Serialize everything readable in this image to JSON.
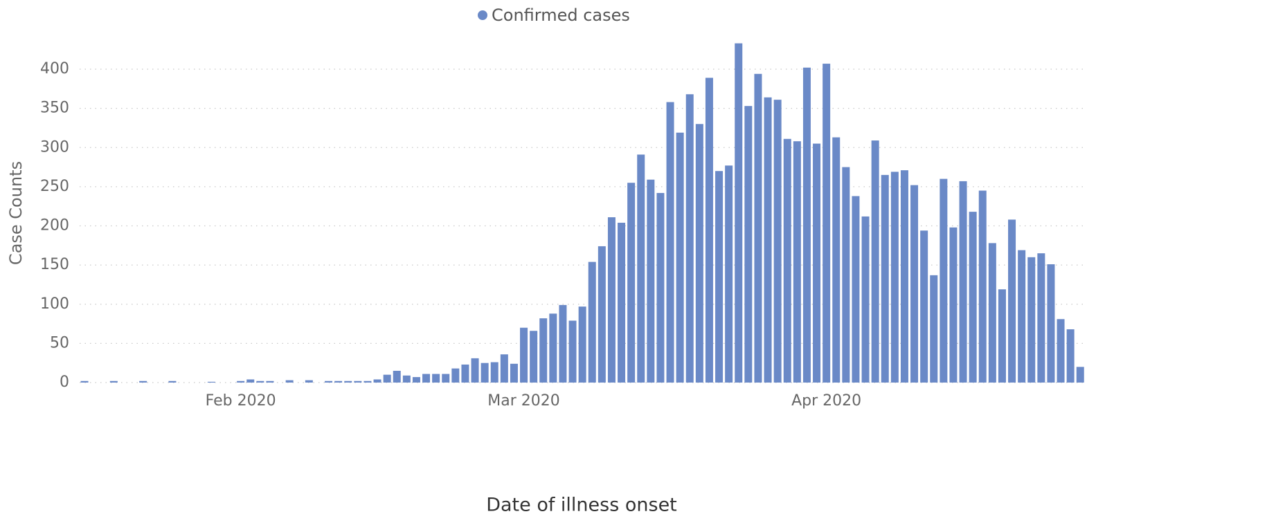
{
  "chart_data": {
    "type": "bar",
    "x_label": "Date of illness onset",
    "y_label": "Case Counts",
    "categories": [
      null,
      null,
      null,
      null,
      null,
      null,
      null,
      null,
      null,
      null,
      null,
      null,
      null,
      null,
      null,
      null,
      "Feb 2020",
      null,
      null,
      null,
      null,
      null,
      null,
      null,
      null,
      null,
      null,
      null,
      null,
      null,
      null,
      null,
      null,
      null,
      null,
      null,
      null,
      null,
      null,
      null,
      null,
      null,
      null,
      null,
      null,
      "Mar 2020",
      null,
      null,
      null,
      null,
      null,
      null,
      null,
      null,
      null,
      null,
      null,
      null,
      null,
      null,
      null,
      null,
      null,
      null,
      null,
      null,
      null,
      null,
      null,
      null,
      null,
      null,
      null,
      null,
      null,
      null,
      "Apr 2020",
      null,
      null,
      null,
      null,
      null,
      null,
      null,
      null,
      null,
      null,
      null,
      null,
      null,
      null,
      null,
      null,
      null,
      null,
      null,
      null,
      null,
      null,
      null,
      null,
      null,
      null
    ],
    "series": [
      {
        "name": "Confirmed cases",
        "color": "#6a89c7",
        "values": [
          2,
          0,
          0,
          2,
          0,
          0,
          2,
          0,
          0,
          2,
          0,
          0,
          0,
          1,
          0,
          0,
          2,
          4,
          2,
          2,
          0,
          3,
          0,
          3,
          0,
          2,
          2,
          2,
          2,
          2,
          4,
          10,
          15,
          9,
          7,
          11,
          11,
          11,
          18,
          23,
          31,
          25,
          26,
          36,
          24,
          70,
          66,
          82,
          88,
          99,
          79,
          97,
          154,
          174,
          211,
          204,
          255,
          291,
          259,
          242,
          358,
          319,
          368,
          330,
          389,
          270,
          277,
          433,
          353,
          394,
          364,
          361,
          311,
          308,
          402,
          305,
          407,
          313,
          275,
          238,
          212,
          309,
          265,
          269,
          271,
          252,
          194,
          137,
          260,
          198,
          257,
          218,
          245,
          178,
          119,
          208,
          169,
          160,
          165,
          151,
          81,
          68,
          20
        ]
      }
    ],
    "ylim": [
      0,
      440
    ],
    "yticks": [
      0,
      50,
      100,
      150,
      200,
      250,
      300,
      350,
      400
    ],
    "grid": true,
    "legend": "top"
  }
}
